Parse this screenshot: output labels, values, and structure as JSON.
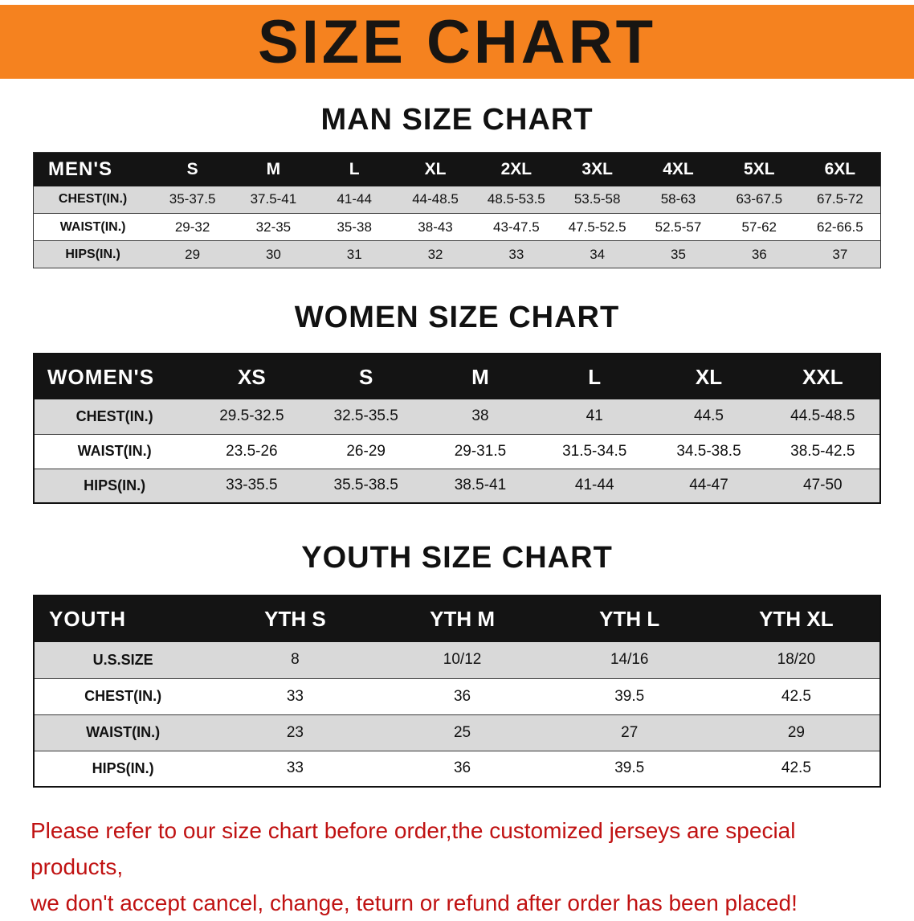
{
  "banner": {
    "title": "SIZE CHART"
  },
  "colors": {
    "banner_bg": "#F5821F",
    "table_header_bg": "#141414",
    "shaded_row_bg": "#d9d9d9",
    "footer_text": "#c01212"
  },
  "sections": [
    {
      "heading": "MAN SIZE CHART",
      "table": {
        "label": "MEN'S",
        "columns": [
          "S",
          "M",
          "L",
          "XL",
          "2XL",
          "3XL",
          "4XL",
          "5XL",
          "6XL"
        ],
        "rows": [
          {
            "label": "CHEST(IN.)",
            "values": [
              "35-37.5",
              "37.5-41",
              "41-44",
              "44-48.5",
              "48.5-53.5",
              "53.5-58",
              "58-63",
              "63-67.5",
              "67.5-72"
            ]
          },
          {
            "label": "WAIST(IN.)",
            "values": [
              "29-32",
              "32-35",
              "35-38",
              "38-43",
              "43-47.5",
              "47.5-52.5",
              "52.5-57",
              "57-62",
              "62-66.5"
            ]
          },
          {
            "label": "HIPS(IN.)",
            "values": [
              "29",
              "30",
              "31",
              "32",
              "33",
              "34",
              "35",
              "36",
              "37"
            ]
          }
        ]
      }
    },
    {
      "heading": "WOMEN SIZE CHART",
      "table": {
        "label": "WOMEN'S",
        "columns": [
          "XS",
          "S",
          "M",
          "L",
          "XL",
          "XXL"
        ],
        "rows": [
          {
            "label": "CHEST(IN.)",
            "values": [
              "29.5-32.5",
              "32.5-35.5",
              "38",
              "41",
              "44.5",
              "44.5-48.5"
            ]
          },
          {
            "label": "WAIST(IN.)",
            "values": [
              "23.5-26",
              "26-29",
              "29-31.5",
              "31.5-34.5",
              "34.5-38.5",
              "38.5-42.5"
            ]
          },
          {
            "label": "HIPS(IN.)",
            "values": [
              "33-35.5",
              "35.5-38.5",
              "38.5-41",
              "41-44",
              "44-47",
              "47-50"
            ]
          }
        ]
      }
    },
    {
      "heading": "YOUTH SIZE CHART",
      "table": {
        "label": "YOUTH",
        "columns": [
          "YTH S",
          "YTH M",
          "YTH L",
          "YTH XL"
        ],
        "rows": [
          {
            "label": "U.S.SIZE",
            "values": [
              "8",
              "10/12",
              "14/16",
              "18/20"
            ]
          },
          {
            "label": "CHEST(IN.)",
            "values": [
              "33",
              "36",
              "39.5",
              "42.5"
            ]
          },
          {
            "label": "WAIST(IN.)",
            "values": [
              "23",
              "25",
              "27",
              "29"
            ]
          },
          {
            "label": "HIPS(IN.)",
            "values": [
              "33",
              "36",
              "39.5",
              "42.5"
            ]
          }
        ]
      }
    }
  ],
  "footer": {
    "line1": "Please refer to our size chart before order,the customized jerseys are special products,",
    "line2": "we don't accept cancel, change, teturn or refund after order has been placed!"
  }
}
